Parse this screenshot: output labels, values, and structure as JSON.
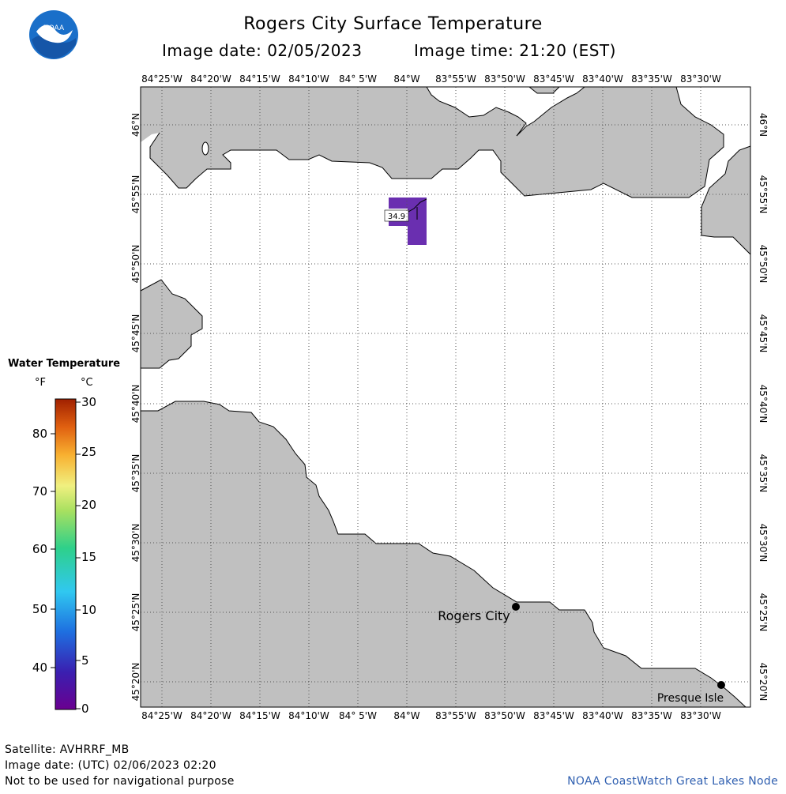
{
  "header": {
    "title": "Rogers City Surface Temperature",
    "image_date": "Image date: 02/05/2023",
    "image_time": "Image time: 21:20 (EST)"
  },
  "logo": {
    "text": "NOAA"
  },
  "axes": {
    "lon_labels": [
      "84°25'W",
      "84°20'W",
      "84°15'W",
      "84°10'W",
      "84° 5'W",
      "84°W",
      "83°55'W",
      "83°50'W",
      "83°45'W",
      "83°40'W",
      "83°35'W",
      "83°30'W"
    ],
    "lat_labels": [
      "46°N",
      "45°55'N",
      "45°50'N",
      "45°45'N",
      "45°40'N",
      "45°35'N",
      "45°30'N",
      "45°25'N",
      "45°20'N"
    ]
  },
  "places": [
    {
      "name": "Rogers City"
    },
    {
      "name": "Presque Isle"
    }
  ],
  "measurement": {
    "value": "34.9",
    "color": "#6a2fb0"
  },
  "legend": {
    "title": "Water Temperature",
    "unit_f": "°F",
    "unit_c": "°C",
    "f_ticks": [
      "80",
      "70",
      "60",
      "50",
      "40"
    ],
    "c_ticks": [
      "30",
      "25",
      "20",
      "15",
      "10",
      "5",
      "0"
    ]
  },
  "footer": {
    "satellite": "Satellite: AVHRRF_MB",
    "utc_date": "Image date: (UTC) 02/06/2023  02:20",
    "disclaimer": "Not to be used for navigational purpose",
    "credit": "NOAA CoastWatch Great Lakes Node"
  },
  "colors": {
    "land": "#c0c0c0",
    "water": "#ffffff",
    "grid": "#555555"
  }
}
